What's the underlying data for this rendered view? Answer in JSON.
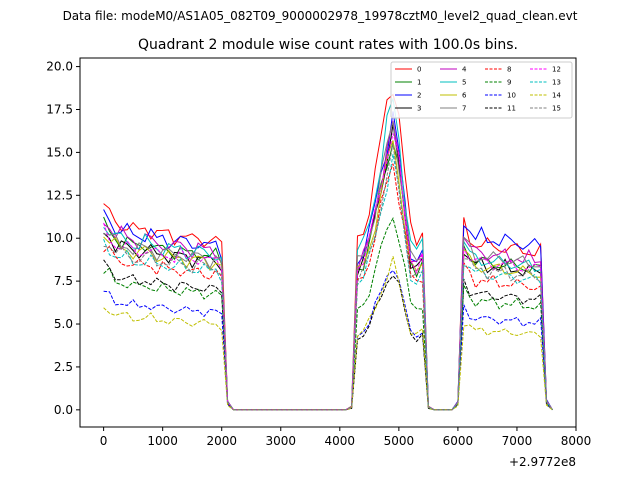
{
  "figure": {
    "supertitle": "Data file: modeM0/AS1A05_082T09_9000002978_19978cztM0_level2_quad_clean.evt"
  },
  "chart_data": {
    "type": "line",
    "title": "Quadrant 2 module wise count rates with 100.0s bins.",
    "xlabel": "",
    "ylabel": "",
    "x_offset_label": "+2.9772e8",
    "xlim": [
      -400,
      8000
    ],
    "ylim": [
      -1.0,
      20.5
    ],
    "x_ticks": [
      0,
      1000,
      2000,
      3000,
      4000,
      5000,
      6000,
      7000,
      8000
    ],
    "y_ticks": [
      0.0,
      2.5,
      5.0,
      7.5,
      10.0,
      12.5,
      15.0,
      17.5,
      20.0
    ],
    "x_tick_labels": [
      "0",
      "1000",
      "2000",
      "3000",
      "4000",
      "5000",
      "6000",
      "7000",
      "8000"
    ],
    "y_tick_labels": [
      "0.0",
      "2.5",
      "5.0",
      "7.5",
      "10.0",
      "12.5",
      "15.0",
      "17.5",
      "20.0"
    ],
    "grid": false,
    "legend_placement": "top-right",
    "x": [
      0,
      100,
      200,
      300,
      400,
      500,
      600,
      700,
      800,
      900,
      1000,
      1100,
      1200,
      1300,
      1400,
      1500,
      1600,
      1700,
      1800,
      1900,
      2000,
      2100,
      2200,
      2300,
      2400,
      2500,
      2600,
      2700,
      2800,
      2900,
      3000,
      3100,
      3200,
      3300,
      3400,
      3500,
      3600,
      3700,
      3800,
      3900,
      4000,
      4100,
      4200,
      4300,
      4400,
      4500,
      4600,
      4700,
      4800,
      4900,
      5000,
      5100,
      5200,
      5300,
      5400,
      5500,
      5600,
      5700,
      5800,
      5900,
      6000,
      6100,
      6200,
      6300,
      6400,
      6500,
      6600,
      6700,
      6800,
      6900,
      7000,
      7100,
      7200,
      7300,
      7400,
      7500,
      7600
    ],
    "profile": {
      "seg1": [
        1.15,
        1.12,
        1.07,
        1.06,
        1.05,
        1.03,
        1.02,
        1.04,
        1.03,
        1.0,
        1.01,
        1.0,
        0.99,
        1.0,
        0.98,
        0.97,
        0.99,
        0.97,
        0.96,
        0.97,
        0.93,
        0.05
      ],
      "seg3": [
        0.02,
        0.95,
        1.0,
        1.12,
        1.3,
        1.5,
        1.7,
        1.85,
        1.62,
        1.3,
        1.0,
        0.95,
        1.0,
        0.02
      ],
      "seg5": [
        0.05,
        1.12,
        1.05,
        1.0,
        1.01,
        0.99,
        1.0,
        0.98,
        0.99,
        0.97,
        0.98,
        0.96,
        0.97,
        0.95,
        0.96,
        0.06
      ]
    },
    "series": [
      {
        "name": "0",
        "color": "#ff0000",
        "dash": "solid",
        "levels": [
          10.2,
          10.5,
          9.6
        ]
      },
      {
        "name": "1",
        "color": "#008000",
        "dash": "solid",
        "levels": [
          9.3,
          8.6,
          8.6
        ]
      },
      {
        "name": "2",
        "color": "#0000ff",
        "dash": "solid",
        "levels": [
          9.9,
          9.2,
          10.0
        ]
      },
      {
        "name": "3",
        "color": "#000000",
        "dash": "solid",
        "levels": [
          9.0,
          8.7,
          8.4
        ]
      },
      {
        "name": "4",
        "color": "#bf00bf",
        "dash": "solid",
        "levels": [
          9.6,
          8.9,
          9.1
        ]
      },
      {
        "name": "5",
        "color": "#00bfbf",
        "dash": "solid",
        "levels": [
          9.4,
          9.7,
          8.7
        ]
      },
      {
        "name": "6",
        "color": "#bfbf00",
        "dash": "solid",
        "levels": [
          8.9,
          8.4,
          8.3
        ]
      },
      {
        "name": "7",
        "color": "#808080",
        "dash": "solid",
        "levels": [
          9.1,
          9.0,
          8.9
        ]
      },
      {
        "name": "8",
        "color": "#ff0000",
        "dash": "dashed",
        "levels": [
          8.2,
          7.8,
          7.5
        ]
      },
      {
        "name": "9",
        "color": "#008000",
        "dash": "dashed",
        "levels": [
          7.0,
          6.2,
          6.3
        ]
      },
      {
        "name": "10",
        "color": "#0000ff",
        "dash": "dashed",
        "levels": [
          5.9,
          4.6,
          5.3
        ]
      },
      {
        "name": "11",
        "color": "#000000",
        "dash": "dashed",
        "levels": [
          7.3,
          4.4,
          6.7
        ]
      },
      {
        "name": "12",
        "color": "#ff00ff",
        "dash": "dashed",
        "levels": [
          9.0,
          8.8,
          8.6
        ]
      },
      {
        "name": "13",
        "color": "#00bfbf",
        "dash": "dashed",
        "levels": [
          8.4,
          7.8,
          7.9
        ]
      },
      {
        "name": "14",
        "color": "#bfbf00",
        "dash": "dashed",
        "levels": [
          5.2,
          4.6,
          4.6
        ]
      },
      {
        "name": "15",
        "color": "#808080",
        "dash": "dashed",
        "levels": [
          8.6,
          8.0,
          8.1
        ]
      }
    ]
  }
}
